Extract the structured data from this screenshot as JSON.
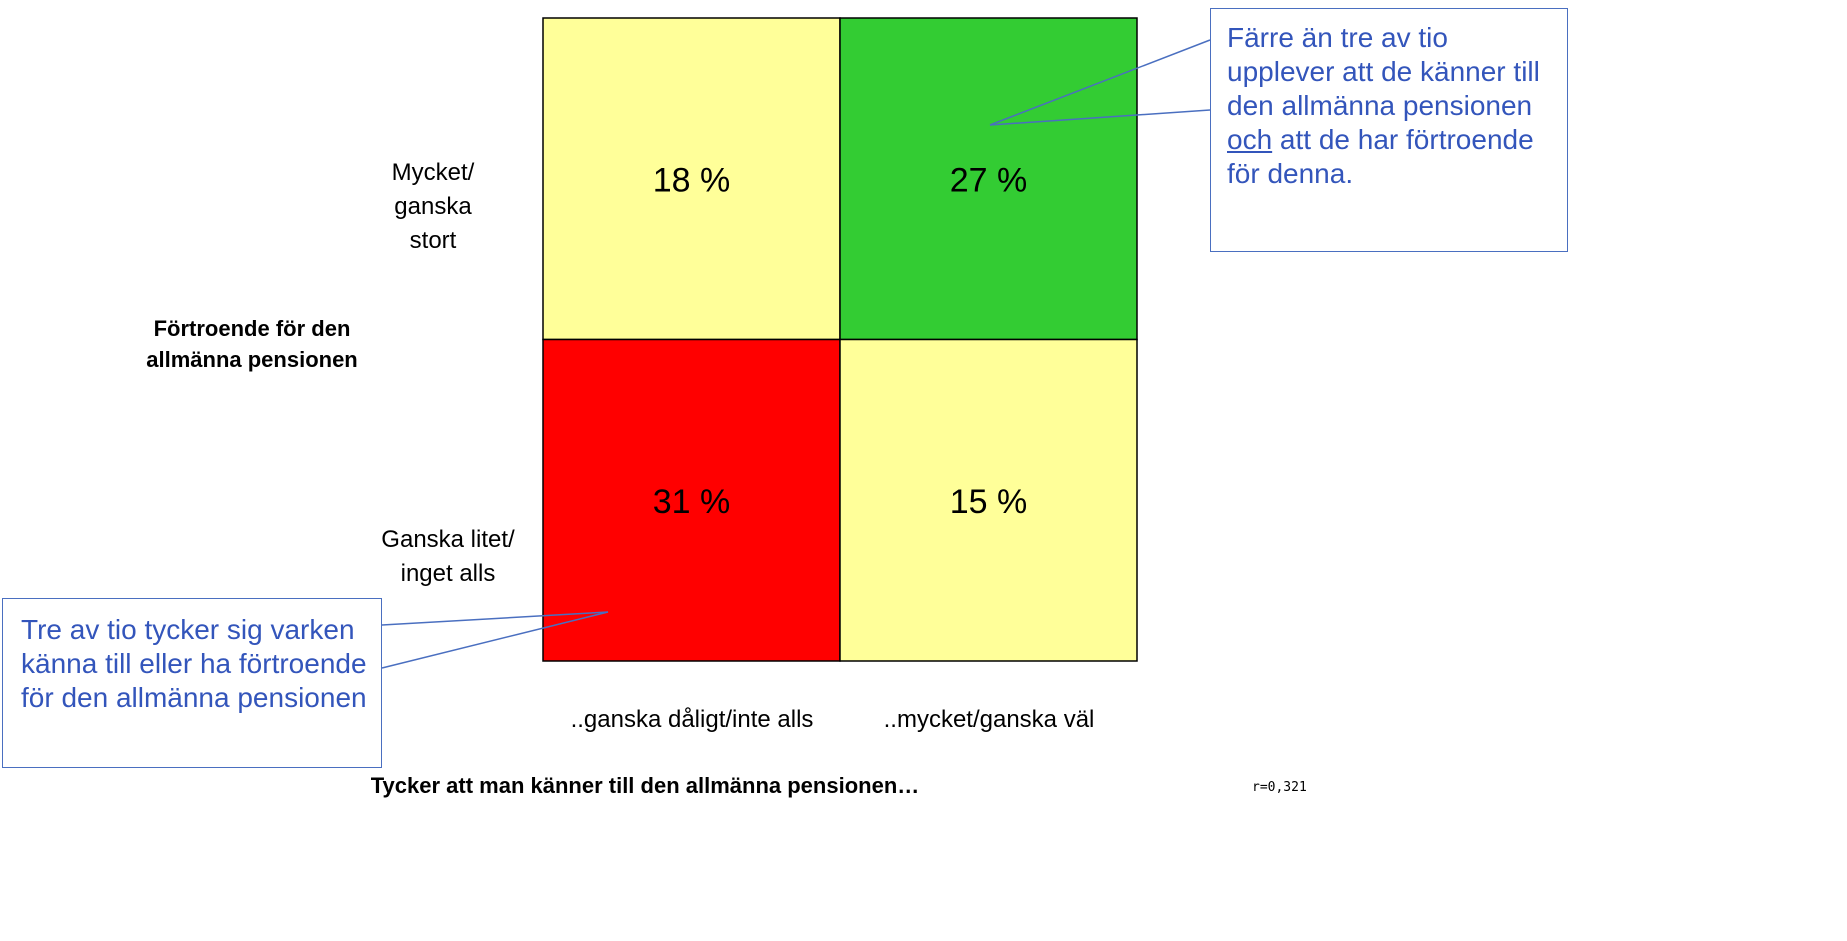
{
  "chart_data": {
    "type": "heatmap",
    "x_label": "Tycker att man känner till den allmänna pensionen…",
    "y_label": "Förtroende för den allmänna pensionen",
    "x_categories": [
      "..ganska dåligt/inte alls",
      "..mycket/ganska väl"
    ],
    "y_categories": [
      "Mycket/ ganska stort",
      "Ganska litet/ inget alls"
    ],
    "values": [
      [
        18,
        27
      ],
      [
        31,
        15
      ]
    ],
    "value_labels": [
      [
        "18 %",
        "27 %"
      ],
      [
        "31 %",
        "15 %"
      ]
    ],
    "colors": [
      [
        "#ffff99",
        "#33cc33"
      ],
      [
        "#ff0000",
        "#ffff99"
      ]
    ],
    "annotations": [
      {
        "text_parts": [
          "Färre än tre av tio upplever att de känner till den allmänna pensionen ",
          "och",
          " att de har förtroende för denna."
        ]
      },
      {
        "text_parts": [
          "Tre av tio tycker sig varken känna till eller ha förtroende för den allmänna pensionen"
        ]
      }
    ],
    "footnote": "r=0,321"
  }
}
